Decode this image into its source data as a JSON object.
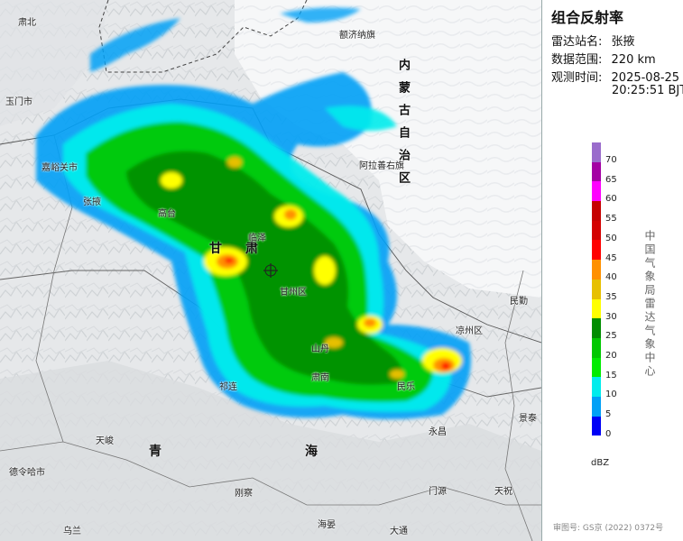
{
  "panel": {
    "title": "组合反射率",
    "station_label": "雷达站名:",
    "station_value": "张掖",
    "range_label": "数据范围:",
    "range_value": "220 km",
    "time_label": "观测时间:",
    "time_date": "2025-08-25",
    "time_clock": "20:25:51 BJT"
  },
  "legend": {
    "unit": "dBZ",
    "labels": [
      "70",
      "65",
      "60",
      "55",
      "50",
      "45",
      "40",
      "35",
      "30",
      "25",
      "20",
      "15",
      "10",
      "5",
      "0"
    ],
    "colors": [
      "#9a6ccc",
      "#a400a4",
      "#ff00ff",
      "#c60000",
      "#d40000",
      "#ff0000",
      "#ff9000",
      "#e7c000",
      "#ffff00",
      "#008d00",
      "#00c800",
      "#00ec00",
      "#00ecec",
      "#01a0f6",
      "#0000f6"
    ]
  },
  "agency": "中国气象局雷达气象中心",
  "approval": "审图号: GS京 (2022) 0372号",
  "map": {
    "regions": {
      "neimenggu": "内蒙古自治区",
      "gansu": "甘肃",
      "qinghai": "青海"
    },
    "places": {
      "subei": "肃北",
      "yumen": "玉门市",
      "jiayuguan": "嘉峪关市",
      "ejina": "额济纳旗",
      "alashan": "阿拉善右旗",
      "minle": "民勤",
      "liangzhou": "凉州区",
      "tianjun": "天峻",
      "delingha": "德令哈市",
      "gangcha": "刚察",
      "haiyan": "海晏",
      "menyuan": "门源",
      "tianzhu": "天祝",
      "wulan": "乌兰",
      "tongde": "大通",
      "yongchang": "永昌",
      "jingyuan": "景泰",
      "gaotai": "高台",
      "linze": "临泽",
      "ganzhou": "甘州区",
      "shandan": "山丹",
      "zhangye": "张掖",
      "sunan": "肃南",
      "sunan2": "祁连",
      "minle2": "民乐",
      "xining": "青",
      "haibei": "海"
    }
  }
}
